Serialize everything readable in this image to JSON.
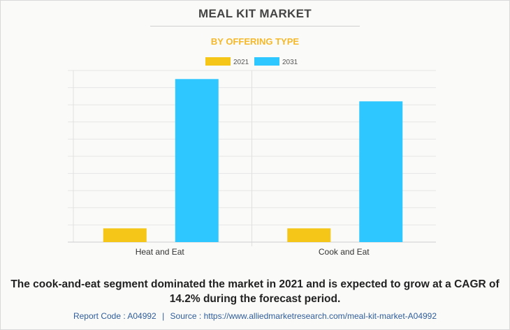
{
  "title": "MEAL KIT MARKET",
  "subtitle": "BY OFFERING TYPE",
  "caption": "The cook-and-eat segment dominated the market in 2021 and is expected to grow at a CAGR of 14.2% during the forecast period.",
  "footer": {
    "report_code_label": "Report Code : A04992",
    "separator": "|",
    "source_label": "Source : https://www.alliedmarketresearch.com/meal-kit-market-A04992"
  },
  "colors": {
    "series_2021": "#f5c518",
    "series_2031": "#2ec7ff"
  },
  "chart_data": {
    "type": "bar",
    "title": "MEAL KIT MARKET",
    "subtitle": "BY OFFERING TYPE",
    "categories": [
      "Heat and Eat",
      "Cook and Eat"
    ],
    "series": [
      {
        "name": "2021",
        "values": [
          0.8,
          0.8
        ]
      },
      {
        "name": "2031",
        "values": [
          9.5,
          8.2
        ]
      }
    ],
    "xlabel": "",
    "ylabel": "",
    "ylim": [
      0,
      10
    ],
    "y_ticks_labeled": false,
    "grid": true,
    "legend": "top-center"
  }
}
